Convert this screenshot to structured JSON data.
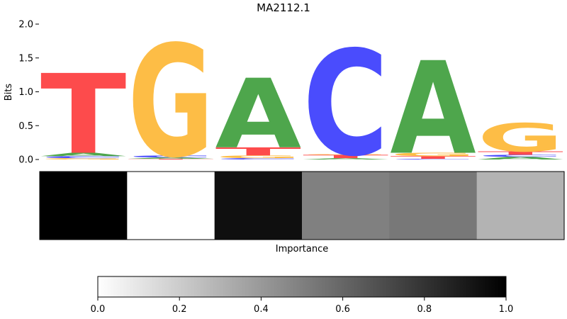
{
  "chart_data": [
    {
      "type": "sequence-logo",
      "title": "MA2112.1",
      "ylabel": "Bits",
      "ylim": [
        0,
        2.0
      ],
      "yticks": [
        0.0,
        0.5,
        1.0,
        1.5,
        2.0
      ],
      "ytick_labels": [
        "0.0",
        "0.5",
        "1.0",
        "1.5",
        "2.0"
      ],
      "letter_colors": {
        "A": "#4ea64c",
        "C": "#4a4cfd",
        "G": "#fdbd46",
        "T": "#fd4b4c"
      },
      "positions": [
        {
          "position": 1,
          "letters": [
            {
              "letter": "G",
              "bits": 0.02
            },
            {
              "letter": "C",
              "bits": 0.03
            },
            {
              "letter": "A",
              "bits": 0.05
            },
            {
              "letter": "T",
              "bits": 1.18
            }
          ]
        },
        {
          "position": 2,
          "letters": [
            {
              "letter": "T",
              "bits": 0.01
            },
            {
              "letter": "A",
              "bits": 0.02
            },
            {
              "letter": "C",
              "bits": 0.03
            },
            {
              "letter": "G",
              "bits": 1.66
            }
          ]
        },
        {
          "position": 3,
          "letters": [
            {
              "letter": "C",
              "bits": 0.02
            },
            {
              "letter": "G",
              "bits": 0.04
            },
            {
              "letter": "T",
              "bits": 0.12
            },
            {
              "letter": "A",
              "bits": 1.03
            }
          ]
        },
        {
          "position": 4,
          "letters": [
            {
              "letter": "A",
              "bits": 0.02
            },
            {
              "letter": "T",
              "bits": 0.05
            },
            {
              "letter": "G",
              "bits": 0.01
            },
            {
              "letter": "C",
              "bits": 1.56
            }
          ]
        },
        {
          "position": 5,
          "letters": [
            {
              "letter": "C",
              "bits": 0.01
            },
            {
              "letter": "T",
              "bits": 0.04
            },
            {
              "letter": "G",
              "bits": 0.05
            },
            {
              "letter": "A",
              "bits": 1.37
            }
          ]
        },
        {
          "position": 6,
          "letters": [
            {
              "letter": "A",
              "bits": 0.04
            },
            {
              "letter": "C",
              "bits": 0.03
            },
            {
              "letter": "T",
              "bits": 0.05
            },
            {
              "letter": "G",
              "bits": 0.42
            }
          ]
        }
      ]
    },
    {
      "type": "heatmap",
      "xlabel": "Importance",
      "colormap": "greys",
      "values": [
        1.0,
        0.0,
        0.94,
        0.5,
        0.53,
        0.3
      ]
    },
    {
      "type": "colorbar",
      "range": [
        0.0,
        1.0
      ],
      "ticks": [
        0.0,
        0.2,
        0.4,
        0.6,
        0.8,
        1.0
      ],
      "tick_labels": [
        "0.0",
        "0.2",
        "0.4",
        "0.6",
        "0.8",
        "1.0"
      ]
    }
  ]
}
